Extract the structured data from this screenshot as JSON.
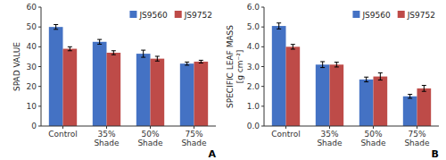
{
  "chart_data": [
    {
      "type": "bar",
      "categories": [
        "Control",
        "35%\nShade",
        "50%\nShade",
        "75%\nShade"
      ],
      "y_label": "SPAD VALUE",
      "series": [
        {
          "name": "JS9560",
          "color": "#4472C4",
          "values": [
            50.0,
            42.5,
            36.5,
            31.5
          ],
          "errors": [
            1.2,
            1.2,
            1.8,
            0.8
          ]
        },
        {
          "name": "JS9752",
          "color": "#BE4B48",
          "values": [
            39.0,
            37.0,
            34.0,
            32.5
          ],
          "errors": [
            1.0,
            1.0,
            1.2,
            0.7
          ]
        }
      ],
      "ylim": [
        0,
        60
      ],
      "yticks": [
        0,
        10,
        20,
        30,
        40,
        50,
        60
      ],
      "grid": false,
      "legend": "upper right",
      "annotations": [
        {
          "text": "A"
        }
      ]
    },
    {
      "type": "bar",
      "categories": [
        "Control",
        "35%\nShade",
        "50%\nShade",
        "75%\nShade"
      ],
      "y_label": "SPECIFIC LEAF MASS\n[g cm⁻²]",
      "series": [
        {
          "name": "JS9560",
          "color": "#4472C4",
          "values": [
            5.05,
            3.1,
            2.35,
            1.5
          ],
          "errors": [
            0.15,
            0.15,
            0.12,
            0.1
          ]
        },
        {
          "name": "JS9752",
          "color": "#BE4B48",
          "values": [
            4.0,
            3.1,
            2.5,
            1.9
          ],
          "errors": [
            0.12,
            0.12,
            0.18,
            0.15
          ]
        }
      ],
      "ylim": [
        0.0,
        6.0
      ],
      "yticks": [
        {
          "value": 0.0,
          "label": "0.0"
        },
        {
          "value": 1.0,
          "label": "1.0"
        },
        {
          "value": 2.0,
          "label": "2.0"
        },
        {
          "value": 3.0,
          "label": "3.0"
        },
        {
          "value": 4.0,
          "label": "4.0"
        },
        {
          "value": 5.0,
          "label": "5.0"
        },
        {
          "value": 6.0,
          "label": "6.0"
        }
      ],
      "grid": false,
      "legend": "upper right",
      "annotations": [
        {
          "text": "B"
        }
      ]
    }
  ]
}
